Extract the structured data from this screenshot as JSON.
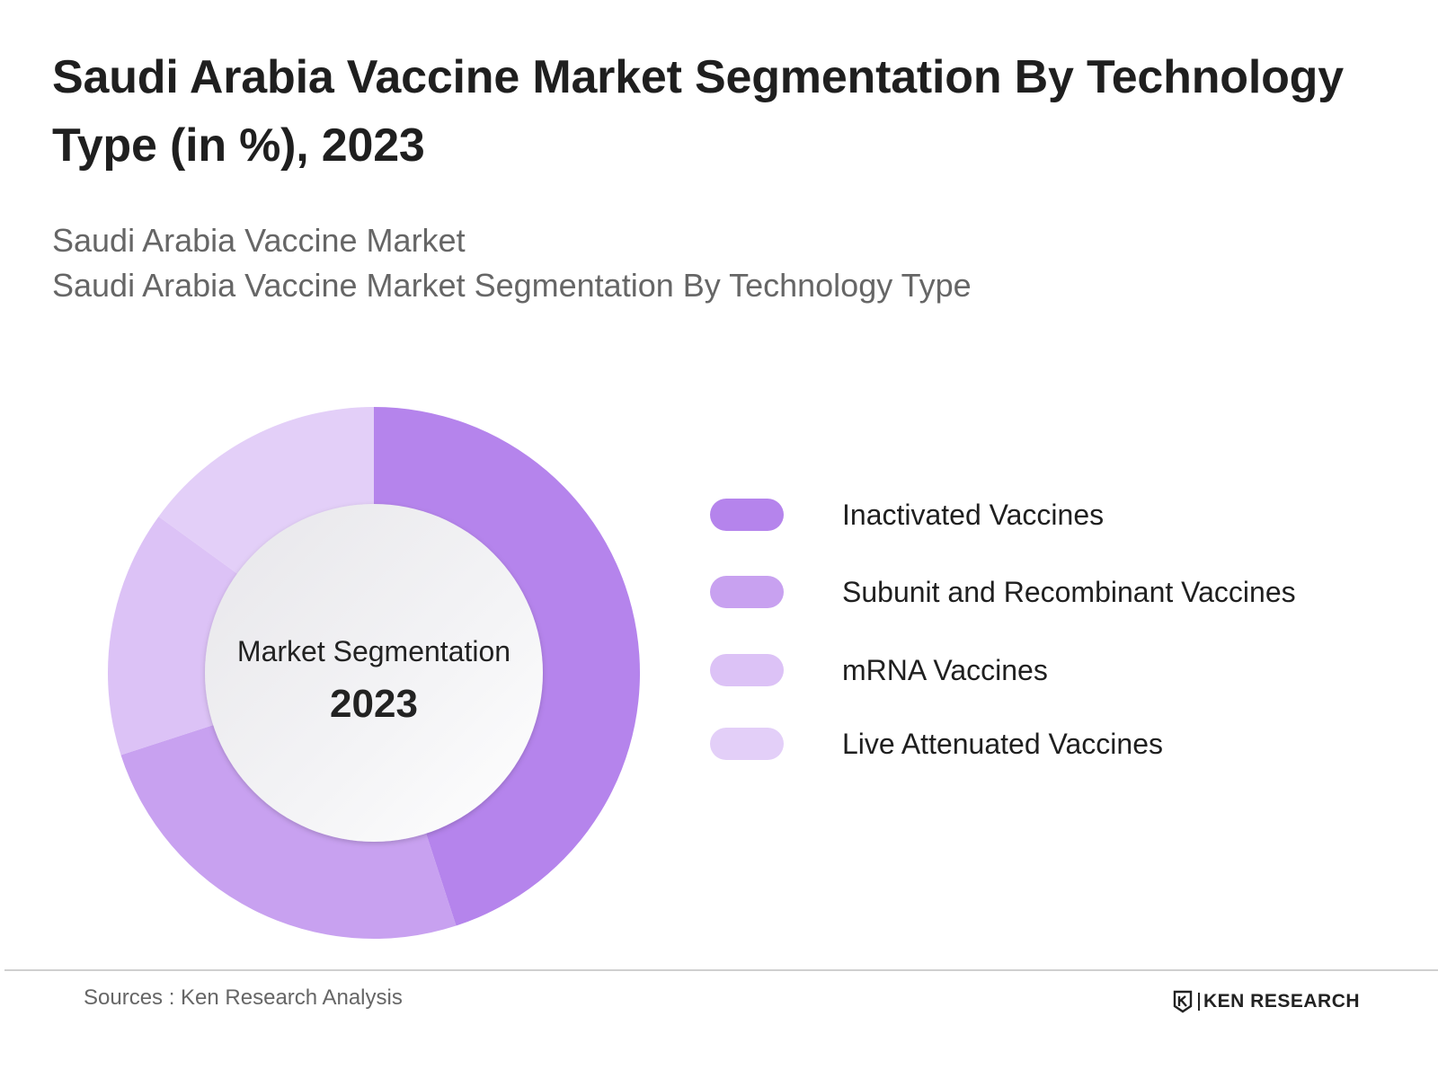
{
  "header": {
    "title": "Saudi Arabia Vaccine Market Segmentation By Technology Type (in %), 2023",
    "subtitle_line_1": "Saudi Arabia Vaccine Market",
    "subtitle_line_2": "Saudi Arabia Vaccine Market Segmentation By Technology Type"
  },
  "center": {
    "label": "Market Segmentation",
    "year": "2023"
  },
  "chart_data": {
    "type": "pie",
    "subtype": "donut",
    "start_angle_deg": 0,
    "direction": "clockwise",
    "legend_position": "right",
    "slices": [
      {
        "label": "Inactivated Vaccines",
        "value": 45,
        "color": "#b584ec"
      },
      {
        "label": "Subunit and Recombinant Vaccines",
        "value": 25,
        "color": "#c8a1f0"
      },
      {
        "label": "mRNA Vaccines",
        "value": 15,
        "color": "#dcc2f6"
      },
      {
        "label": "Live Attenuated Vaccines",
        "value": 15,
        "color": "#e3cff8"
      }
    ]
  },
  "footer": {
    "source": "Sources : Ken Research Analysis",
    "logo_text": "KEN RESEARCH"
  }
}
